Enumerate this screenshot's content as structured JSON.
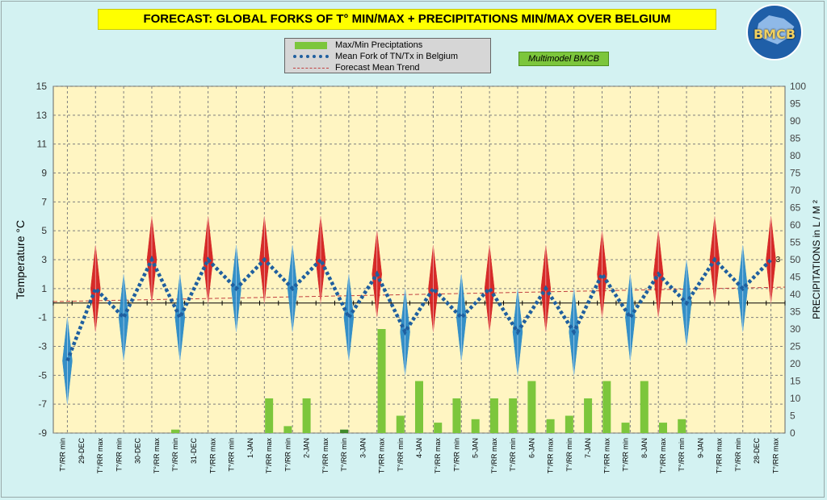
{
  "header": {
    "title": "FORECAST: GLOBAL FORKS OF T° MIN/MAX + PRECIPITATIONS MIN/MAX OVER  BELGIUM",
    "badge": "Multimodel BMCB",
    "logo_text": "BMCB"
  },
  "colors": {
    "plot_bg": "#fff5c2",
    "grid": "#7f7f7f",
    "precip": "#7cc63c",
    "precip_dark": "#3f8a2a",
    "mean_fork": "#1f5f9f",
    "trend": "#c04040",
    "tmax": "#d42020",
    "tmin": "#2a8ac8"
  },
  "chart_data": {
    "type": "line",
    "xlabels": [
      "T°/RR min",
      "29-DEC",
      "T°/RR max",
      "T°/RR min",
      "30-DEC",
      "T°/RR max",
      "T°/RR min",
      "31-DEC",
      "T°/RR max",
      "T°/RR min",
      "1-JAN",
      "T°/RR max",
      "T°/RR min",
      "2-JAN",
      "T°/RR max",
      "T°/RR min",
      "3-JAN",
      "T°/RR max",
      "T°/RR min",
      "4-JAN",
      "T°/RR max",
      "T°/RR min",
      "5-JAN",
      "T°/RR max",
      "T°/RR min",
      "6-JAN",
      "T°/RR max",
      "T°/RR min",
      "7-JAN",
      "T°/RR max",
      "T°/RR min",
      "8-JAN",
      "T°/RR max",
      "T°/RR min",
      "9-JAN",
      "T°/RR max",
      "T°/RR min",
      "28-DEC",
      "T°/RR max"
    ],
    "ylabel": "Temperature  °C",
    "y2label": "PRECIPITATIONS in L / M ²",
    "ylim": [
      -9,
      15
    ],
    "y2lim": [
      0,
      100
    ],
    "yticks": [
      -9,
      -7,
      -5,
      -3,
      -1,
      1,
      3,
      5,
      7,
      9,
      11,
      13,
      15
    ],
    "y2ticks": [
      0,
      5,
      10,
      15,
      20,
      25,
      30,
      35,
      40,
      45,
      50,
      55,
      60,
      65,
      70,
      75,
      80,
      85,
      90,
      95,
      100
    ],
    "grid": true,
    "legend_position": "top-center",
    "legend": [
      "Max/Min Preciptations",
      "Mean Fork of TN/Tx in Belgium",
      "Forecast Mean Trend"
    ],
    "forks": [
      {
        "kind": "min",
        "low": -7,
        "high": -1,
        "mean": -4
      },
      {
        "kind": "max",
        "low": -2,
        "high": 4,
        "mean": 1
      },
      {
        "kind": "min",
        "low": -4,
        "high": 2,
        "mean": -1
      },
      {
        "kind": "max",
        "low": 0,
        "high": 6,
        "mean": 3
      },
      {
        "kind": "min",
        "low": -4,
        "high": 2,
        "mean": -1
      },
      {
        "kind": "max",
        "low": 0,
        "high": 6,
        "mean": 3
      },
      {
        "kind": "min",
        "low": -2,
        "high": 4,
        "mean": 1
      },
      {
        "kind": "max",
        "low": 0,
        "high": 6,
        "mean": 3
      },
      {
        "kind": "min",
        "low": -2,
        "high": 4,
        "mean": 1
      },
      {
        "kind": "max",
        "low": 0,
        "high": 6,
        "mean": 3
      },
      {
        "kind": "min",
        "low": -4,
        "high": 2,
        "mean": -1
      },
      {
        "kind": "max",
        "low": -1,
        "high": 5,
        "mean": 2
      },
      {
        "kind": "min",
        "low": -5,
        "high": 1,
        "mean": -2
      },
      {
        "kind": "max",
        "low": -2,
        "high": 4,
        "mean": 1
      },
      {
        "kind": "min",
        "low": -4,
        "high": 2,
        "mean": -1
      },
      {
        "kind": "max",
        "low": -2,
        "high": 4,
        "mean": 1
      },
      {
        "kind": "min",
        "low": -5,
        "high": 1,
        "mean": -2
      },
      {
        "kind": "max",
        "low": -2,
        "high": 4,
        "mean": 1
      },
      {
        "kind": "min",
        "low": -5,
        "high": 1,
        "mean": -2
      },
      {
        "kind": "max",
        "low": -1,
        "high": 5,
        "mean": 2
      },
      {
        "kind": "min",
        "low": -4,
        "high": 2,
        "mean": -1
      },
      {
        "kind": "max",
        "low": -1,
        "high": 5,
        "mean": 2
      },
      {
        "kind": "min",
        "low": -3,
        "high": 3,
        "mean": 0
      },
      {
        "kind": "max",
        "low": 0,
        "high": 6,
        "mean": 3
      },
      {
        "kind": "min",
        "low": -2,
        "high": 4,
        "mean": 1
      },
      {
        "kind": "max",
        "low": 0,
        "high": 6,
        "mean": 3
      }
    ],
    "mean_fork_end_label": "3",
    "trend": {
      "start": 0.1,
      "end": 1.1
    },
    "precip": [
      0,
      0,
      0,
      0,
      0,
      0,
      1,
      0,
      0,
      0,
      0,
      10,
      2,
      10,
      0,
      1,
      0,
      30,
      5,
      15,
      3,
      10,
      4,
      10,
      10,
      15,
      4,
      5,
      10,
      15,
      3,
      15,
      3,
      4
    ],
    "precip_dark_index": 15
  }
}
